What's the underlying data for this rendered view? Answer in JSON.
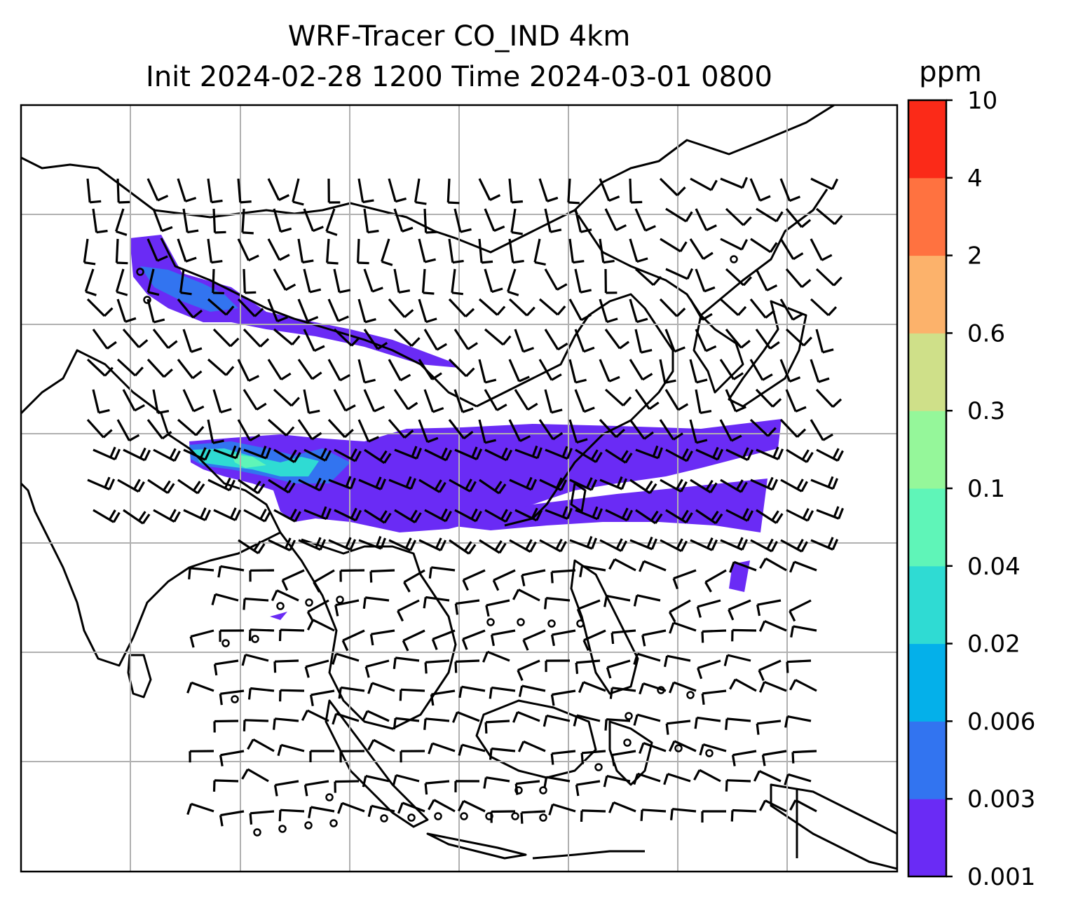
{
  "title": {
    "line1": "WRF-Tracer CO_IND 4km",
    "line2": "Init 2024-02-28 1200 Time 2024-03-01 0800"
  },
  "colorbar": {
    "unit": "ppm",
    "levels": [
      "0.001",
      "0.003",
      "0.006",
      "0.02",
      "0.04",
      "0.1",
      "0.3",
      "0.6",
      "2",
      "4",
      "10"
    ],
    "colors": [
      "#6a2bf5",
      "#3274f0",
      "#04b0ea",
      "#2fdbd3",
      "#5ff5b8",
      "#95f79a",
      "#cfe089",
      "#fcb26b",
      "#ff7240",
      "#fb2a18"
    ]
  },
  "map": {
    "plume_color": "#6a2bf5",
    "plume_colors_secondary": [
      "#3274f0",
      "#2fdbd3",
      "#5ff5b8"
    ],
    "gridline_color": "#b0b0b0"
  }
}
